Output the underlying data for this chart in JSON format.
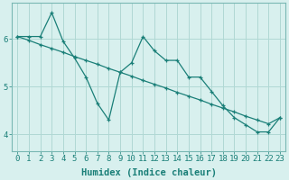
{
  "xlabel": "Humidex (Indice chaleur)",
  "background_color": "#d8f0ee",
  "grid_color": "#b0d8d4",
  "line_color": "#1a7f78",
  "xlim": [
    -0.5,
    23.5
  ],
  "ylim": [
    3.65,
    6.75
  ],
  "yticks": [
    4,
    5,
    6
  ],
  "xticks": [
    0,
    1,
    2,
    3,
    4,
    5,
    6,
    7,
    8,
    9,
    10,
    11,
    12,
    13,
    14,
    15,
    16,
    17,
    18,
    19,
    20,
    21,
    22,
    23
  ],
  "line1_x": [
    0,
    1,
    2,
    3,
    4,
    5,
    6,
    7,
    8,
    9,
    10,
    11,
    12,
    13,
    14,
    15,
    16,
    17,
    18,
    19,
    20,
    21,
    22,
    23
  ],
  "line1_y": [
    6.05,
    6.05,
    6.05,
    6.55,
    5.95,
    5.6,
    5.2,
    4.65,
    4.3,
    5.3,
    5.5,
    6.05,
    5.75,
    5.55,
    5.55,
    5.2,
    5.2,
    4.9,
    4.6,
    4.35,
    4.2,
    4.05,
    4.05,
    4.35
  ],
  "line2_x": [
    0,
    1,
    2,
    3,
    4,
    5,
    6,
    7,
    8,
    9,
    10,
    11,
    12,
    13,
    14,
    15,
    16,
    17,
    18,
    19,
    20,
    21,
    22,
    23
  ],
  "line2_y": [
    6.05,
    5.97,
    5.88,
    5.8,
    5.72,
    5.63,
    5.55,
    5.47,
    5.38,
    5.3,
    5.22,
    5.13,
    5.05,
    4.97,
    4.88,
    4.8,
    4.72,
    4.63,
    4.55,
    4.47,
    4.38,
    4.3,
    4.22,
    4.35
  ],
  "fontsize": 7.5,
  "tick_fontsize": 6.5,
  "label_fontsize": 7.5
}
